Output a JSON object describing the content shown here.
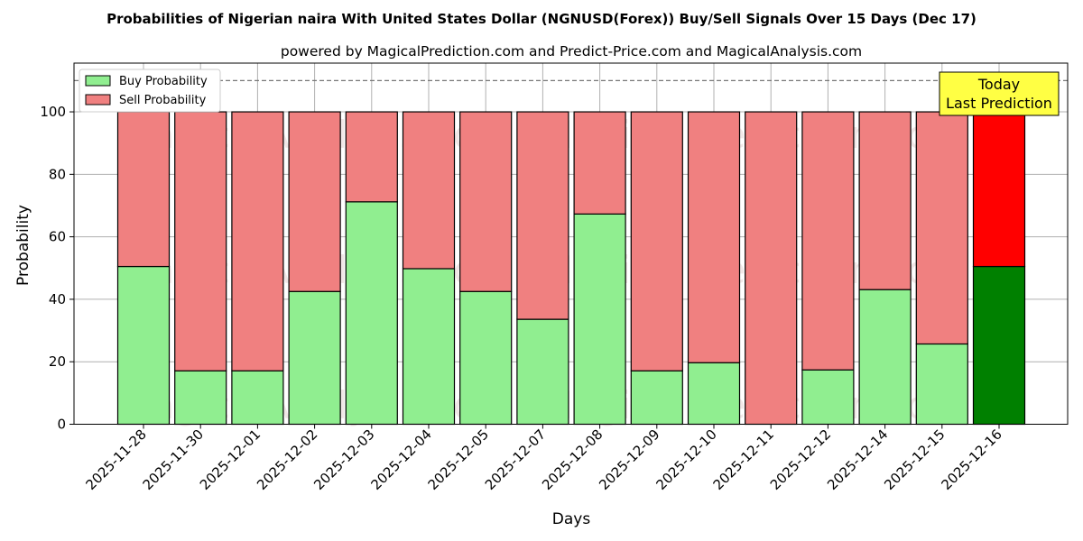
{
  "chart_data": {
    "type": "bar",
    "stacked": true,
    "title": "Probabilities of Nigerian naira With United States Dollar (NGNUSD(Forex)) Buy/Sell Signals Over 15 Days (Dec 17)",
    "subtitle": "powered by MagicalPrediction.com and Predict-Price.com and MagicalAnalysis.com",
    "xlabel": "Days",
    "ylabel": "Probability",
    "ylim": [
      0,
      115.6
    ],
    "yticks": [
      0,
      20,
      40,
      60,
      80,
      100
    ],
    "grid": true,
    "legend_position": "top-left",
    "categories": [
      "2025-11-28",
      "2025-11-30",
      "2025-12-01",
      "2025-12-02",
      "2025-12-03",
      "2025-12-04",
      "2025-12-05",
      "2025-12-07",
      "2025-12-08",
      "2025-12-09",
      "2025-12-10",
      "2025-12-11",
      "2025-12-12",
      "2025-12-14",
      "2025-12-15",
      "2025-12-16"
    ],
    "series": [
      {
        "name": "Buy Probability",
        "color": "#90ee90",
        "highlight_color": "#008000",
        "values": [
          50.5,
          17.1,
          17.1,
          42.5,
          71.2,
          49.8,
          42.5,
          33.6,
          67.3,
          17.1,
          19.7,
          0,
          17.4,
          43.1,
          25.7,
          50.5
        ]
      },
      {
        "name": "Sell Probability",
        "color": "#f08080",
        "highlight_color": "#ff0000",
        "values": [
          49.5,
          82.9,
          82.9,
          57.5,
          28.8,
          50.2,
          57.5,
          66.4,
          32.7,
          82.9,
          80.3,
          100,
          82.6,
          56.9,
          74.3,
          49.5
        ]
      }
    ],
    "reference_line": 110,
    "annotation": {
      "line1": "Today",
      "line2": "Last Prediction"
    },
    "watermarks": [
      "MagicalAnalysis.com",
      "MagicalPrediction.com"
    ]
  }
}
